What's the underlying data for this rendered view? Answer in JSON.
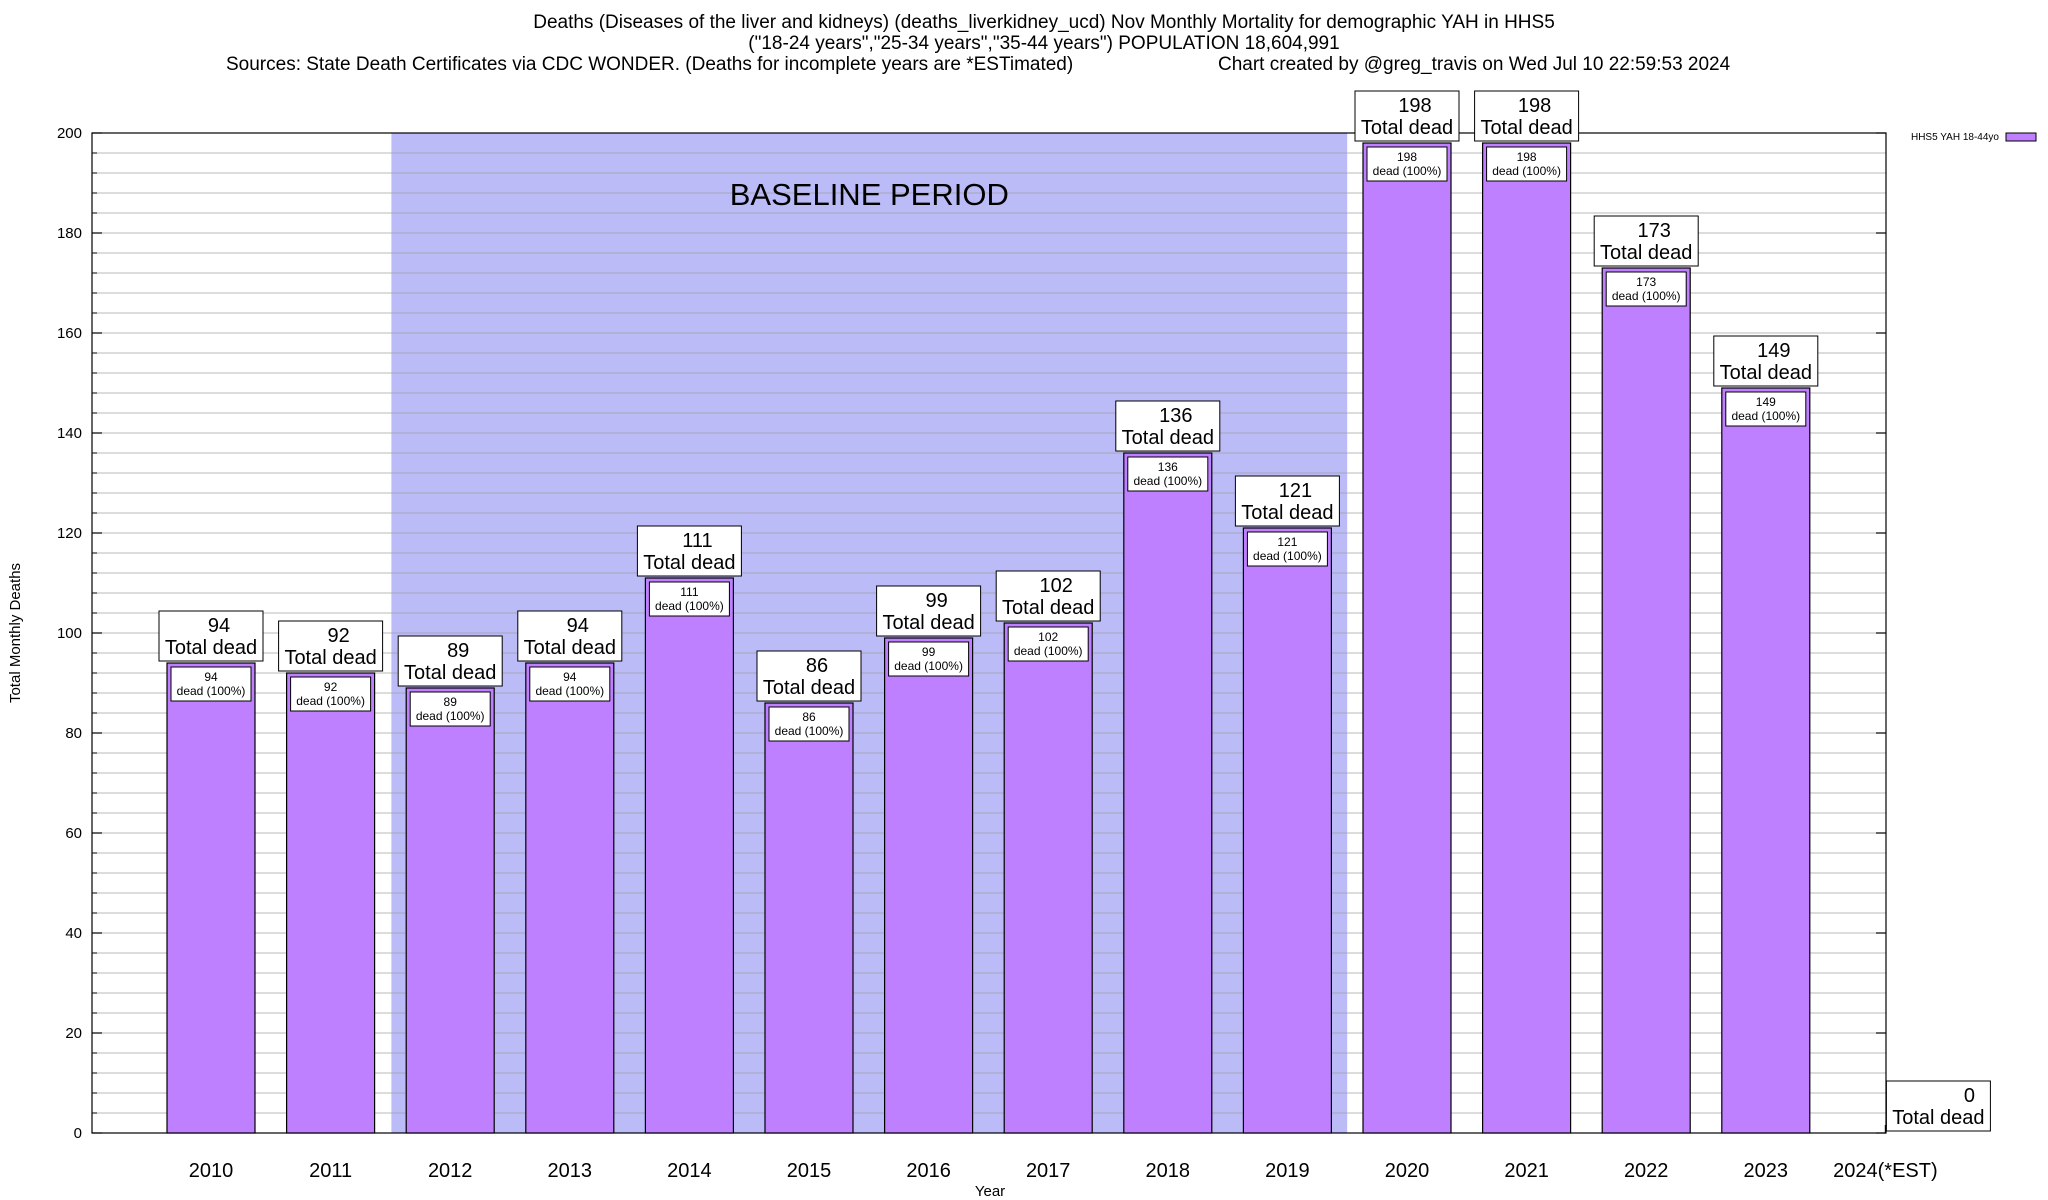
{
  "chart_data": {
    "type": "bar",
    "title": "Deaths (Diseases of the liver and kidneys) (deaths_liverkidney_ucd) Nov Monthly Mortality for demographic YAH in HHS5",
    "subtitle": "(\"18-24 years\",\"25-34 years\",\"35-44 years\") POPULATION 18,604,991",
    "sources": "Sources: State Death Certificates via CDC WONDER. (Deaths for incomplete years are *ESTimated)",
    "created": "Chart created by @greg_travis on Wed Jul 10 22:59:53 2024",
    "xlabel": "Year",
    "ylabel": "Total Monthly Deaths",
    "ylim": [
      0,
      200
    ],
    "yticks": [
      0,
      20,
      40,
      60,
      80,
      100,
      120,
      140,
      160,
      180,
      200
    ],
    "categories": [
      "2010",
      "2011",
      "2012",
      "2013",
      "2014",
      "2015",
      "2016",
      "2017",
      "2018",
      "2019",
      "2020",
      "2021",
      "2022",
      "2023",
      "2024(*EST)"
    ],
    "series": [
      {
        "name": "HHS5 YAH 18-44yo",
        "values": [
          94,
          92,
          89,
          94,
          111,
          86,
          99,
          102,
          136,
          121,
          198,
          198,
          173,
          149,
          0
        ]
      }
    ],
    "bar_label_top_suffix": "Total dead",
    "bar_label_inner_suffix": "dead (100%)",
    "baseline": {
      "label": "BASELINE PERIOD",
      "from": "2012",
      "to": "2019"
    },
    "legend_position": "top-right",
    "grid": "horizontal"
  },
  "colors": {
    "bar_fill": "#bf80ff",
    "bar_stroke": "#000000",
    "baseline_fill": "#bbbbf8",
    "grid": "#a0a0a0"
  }
}
